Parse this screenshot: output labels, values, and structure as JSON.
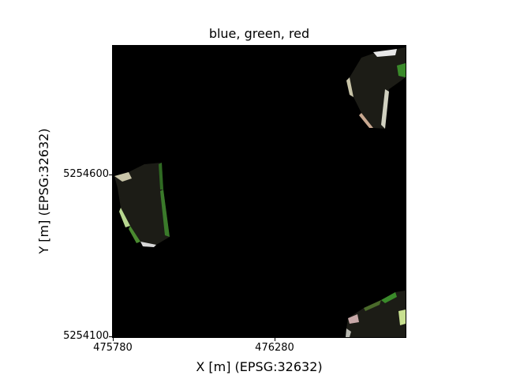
{
  "figure": {
    "title": "blue, green, red",
    "xlabel": "X [m] (EPSG:32632)",
    "ylabel": "Y [m] (EPSG:32632)",
    "x_ticks": [
      "475780",
      "476280"
    ],
    "y_ticks": [
      "5254600",
      "5254100"
    ]
  },
  "image": {
    "description_colors": {
      "background": "#000000",
      "field_dark": "#1a1a14",
      "field_green": "#3a7a2a",
      "field_light": "#c8d8b8"
    }
  }
}
